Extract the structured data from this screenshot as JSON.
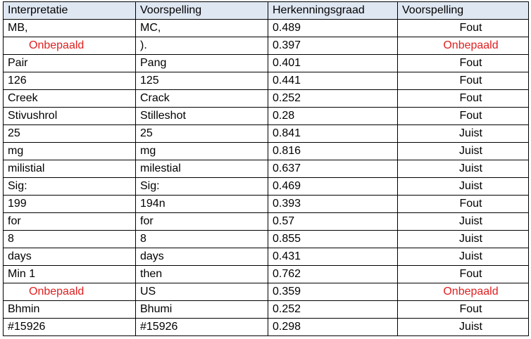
{
  "table": {
    "headers": [
      "Interpretatie",
      "Voorspelling",
      "Herkenningsgraad",
      "Voorspelling"
    ],
    "rows": [
      {
        "interpretatie": "MB,",
        "voorspelling": "MC,",
        "herkenningsgraad": "0.489",
        "oordeel": "Fout",
        "undetermined_interp": false,
        "undetermined_verdict": false
      },
      {
        "interpretatie": "Onbepaald",
        "voorspelling": ").",
        "herkenningsgraad": "0.397",
        "oordeel": "Onbepaald",
        "undetermined_interp": true,
        "undetermined_verdict": true
      },
      {
        "interpretatie": "Pair",
        "voorspelling": "Pang",
        "herkenningsgraad": "0.401",
        "oordeel": "Fout",
        "undetermined_interp": false,
        "undetermined_verdict": false
      },
      {
        "interpretatie": "126",
        "voorspelling": "125",
        "herkenningsgraad": "0.441",
        "oordeel": "Fout",
        "undetermined_interp": false,
        "undetermined_verdict": false
      },
      {
        "interpretatie": "Creek",
        "voorspelling": "Crack",
        "herkenningsgraad": "0.252",
        "oordeel": "Fout",
        "undetermined_interp": false,
        "undetermined_verdict": false
      },
      {
        "interpretatie": "Stivushrol",
        "voorspelling": "Stilleshot",
        "herkenningsgraad": "0.28",
        "oordeel": "Fout",
        "undetermined_interp": false,
        "undetermined_verdict": false
      },
      {
        "interpretatie": "25",
        "voorspelling": "25",
        "herkenningsgraad": "0.841",
        "oordeel": "Juist",
        "undetermined_interp": false,
        "undetermined_verdict": false
      },
      {
        "interpretatie": "mg",
        "voorspelling": "mg",
        "herkenningsgraad": "0.816",
        "oordeel": "Juist",
        "undetermined_interp": false,
        "undetermined_verdict": false
      },
      {
        "interpretatie": "milistial",
        "voorspelling": "milestial",
        "herkenningsgraad": "0.637",
        "oordeel": "Juist",
        "undetermined_interp": false,
        "undetermined_verdict": false
      },
      {
        "interpretatie": "Sig:",
        "voorspelling": "Sig:",
        "herkenningsgraad": "0.469",
        "oordeel": "Juist",
        "undetermined_interp": false,
        "undetermined_verdict": false
      },
      {
        "interpretatie": "199",
        "voorspelling": "194n",
        "herkenningsgraad": "0.393",
        "oordeel": "Fout",
        "undetermined_interp": false,
        "undetermined_verdict": false
      },
      {
        "interpretatie": "for",
        "voorspelling": "for",
        "herkenningsgraad": "0.57",
        "oordeel": "Juist",
        "undetermined_interp": false,
        "undetermined_verdict": false
      },
      {
        "interpretatie": "8",
        "voorspelling": "8",
        "herkenningsgraad": "0.855",
        "oordeel": "Juist",
        "undetermined_interp": false,
        "undetermined_verdict": false
      },
      {
        "interpretatie": "days",
        "voorspelling": "days",
        "herkenningsgraad": "0.431",
        "oordeel": "Juist",
        "undetermined_interp": false,
        "undetermined_verdict": false
      },
      {
        "interpretatie": "Min 1",
        "voorspelling": "then",
        "herkenningsgraad": "0.762",
        "oordeel": "Fout",
        "undetermined_interp": false,
        "undetermined_verdict": false
      },
      {
        "interpretatie": "Onbepaald",
        "voorspelling": "US",
        "herkenningsgraad": "0.359",
        "oordeel": "Onbepaald",
        "undetermined_interp": true,
        "undetermined_verdict": true
      },
      {
        "interpretatie": "Bhmin",
        "voorspelling": "Bhumi",
        "herkenningsgraad": "0.252",
        "oordeel": "Fout",
        "undetermined_interp": false,
        "undetermined_verdict": false
      },
      {
        "interpretatie": "#15926",
        "voorspelling": "#15926",
        "herkenningsgraad": "0.298",
        "oordeel": "Juist",
        "undetermined_interp": false,
        "undetermined_verdict": false
      }
    ]
  },
  "colors": {
    "header_background": "#dfe7f3",
    "undetermined_text": "#e02020",
    "border": "#000000"
  }
}
